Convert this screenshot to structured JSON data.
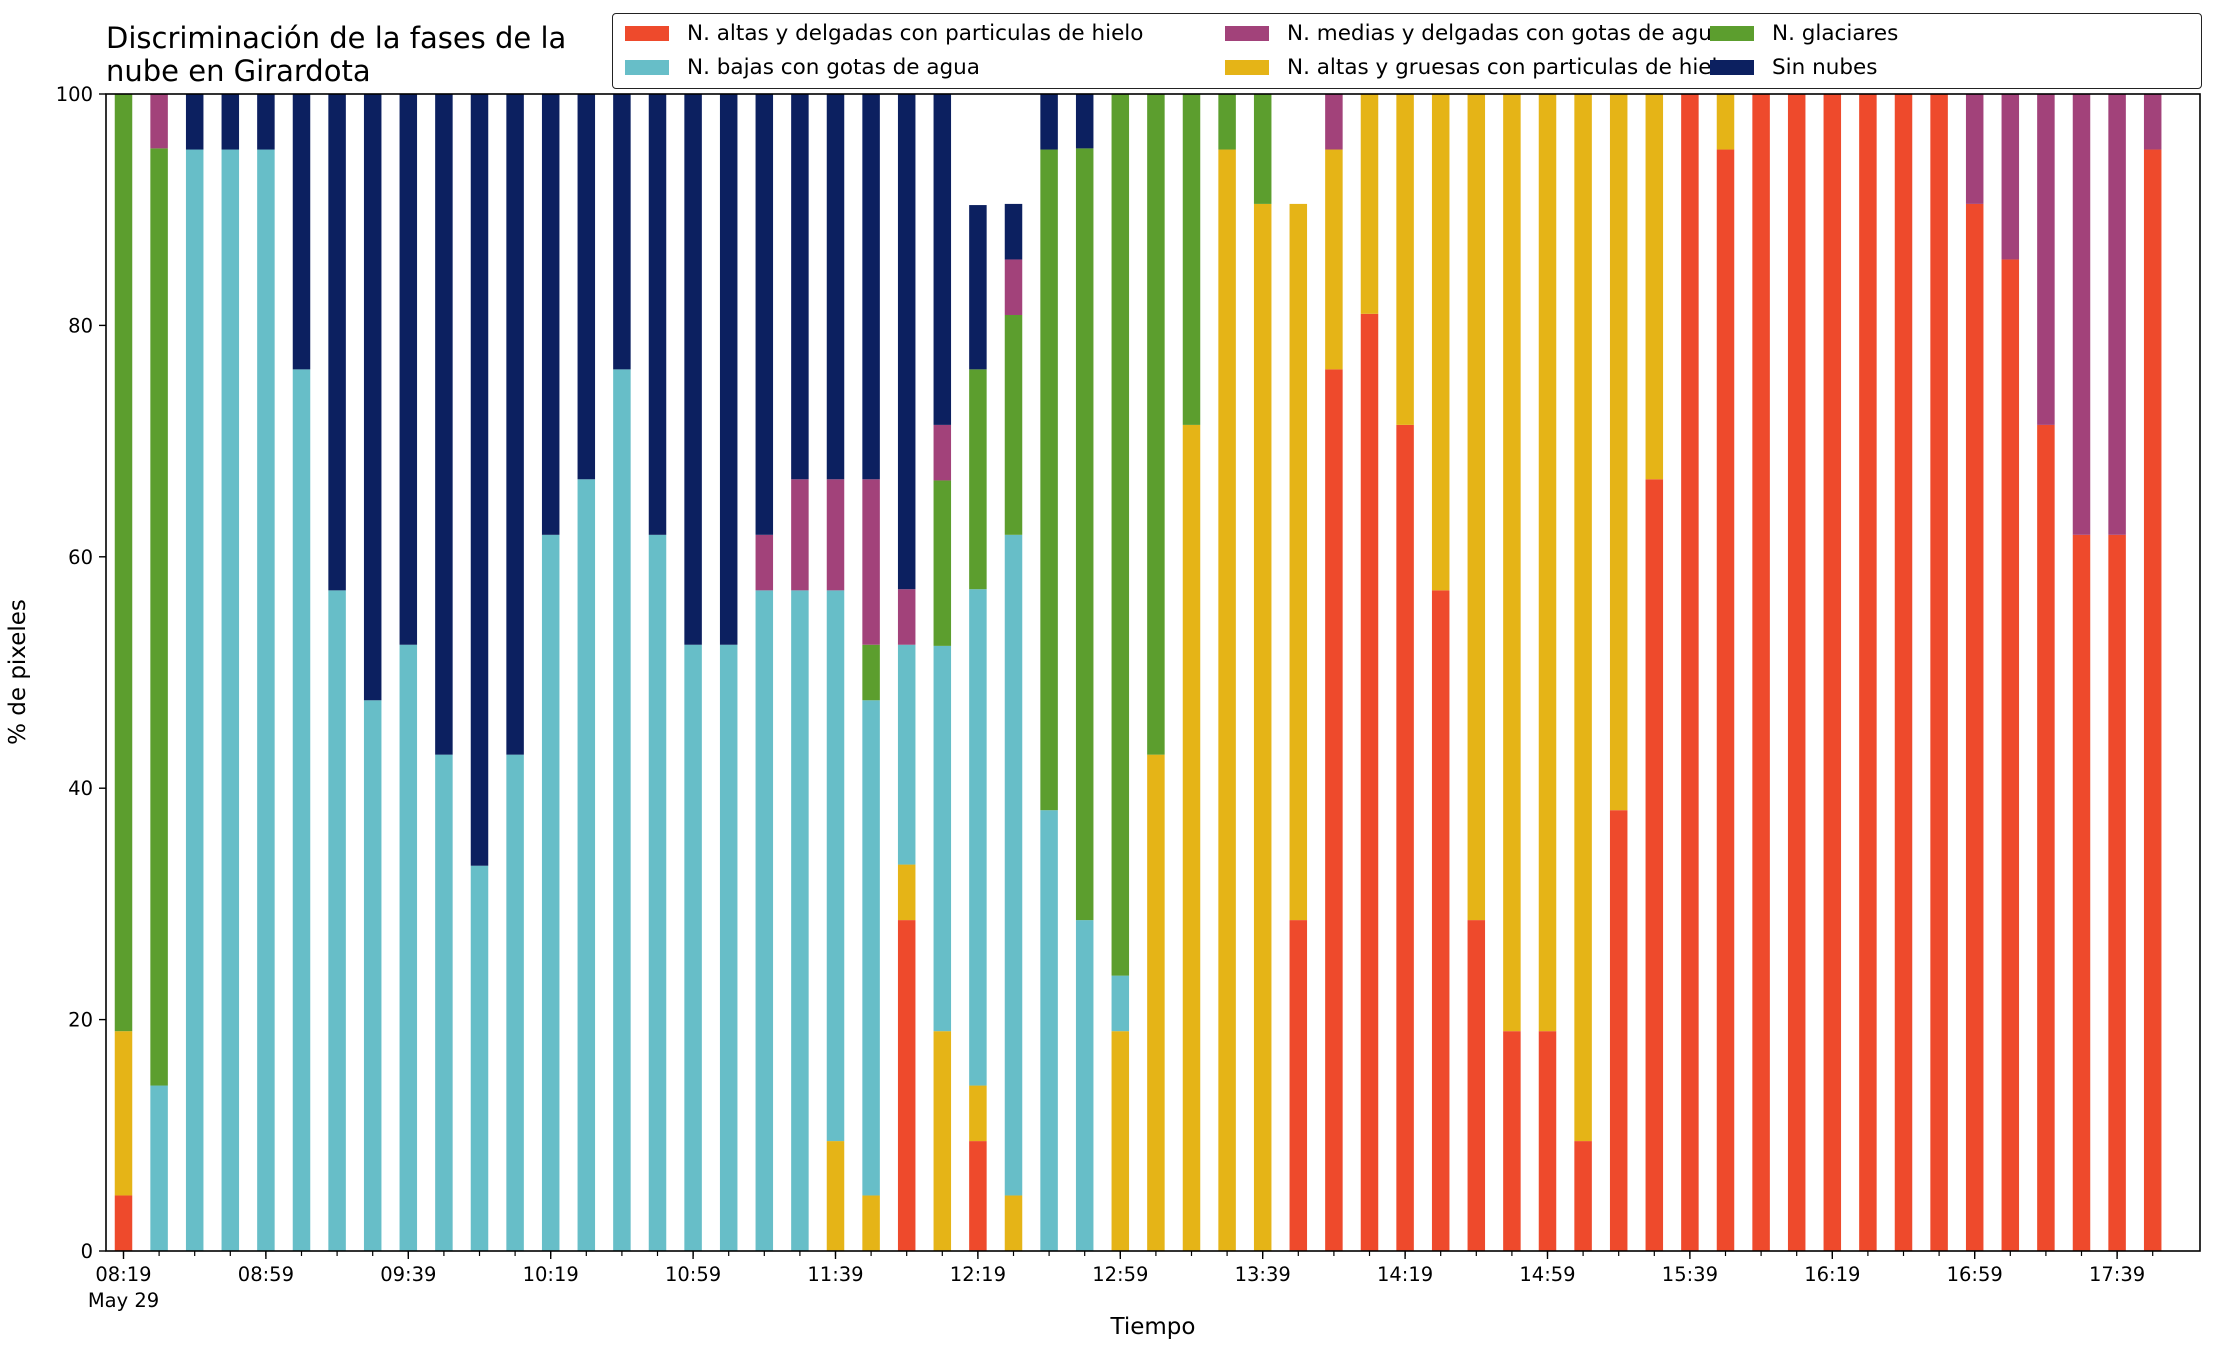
{
  "chart_data": {
    "type": "bar",
    "stacked": true,
    "title": "Discriminación de la fases de la\nnube en Girardota",
    "xlabel": "Tiempo",
    "ylabel": "% de pixeles",
    "ylim": [
      0,
      100
    ],
    "yticks": [
      0,
      20,
      40,
      60,
      80,
      100
    ],
    "grid": false,
    "legend_position": "top-right",
    "categories": [
      "08:19",
      "08:29",
      "08:39",
      "08:49",
      "08:59",
      "09:09",
      "09:19",
      "09:29",
      "09:39",
      "09:49",
      "09:59",
      "10:09",
      "10:19",
      "10:29",
      "10:39",
      "10:49",
      "10:59",
      "11:09",
      "11:19",
      "11:29",
      "11:39",
      "11:49",
      "11:59",
      "12:09",
      "12:19",
      "12:29",
      "12:39",
      "12:49",
      "12:59",
      "13:09",
      "13:19",
      "13:29",
      "13:39",
      "13:49",
      "13:59",
      "14:09",
      "14:19",
      "14:29",
      "14:39",
      "14:49",
      "14:59",
      "15:09",
      "15:19",
      "15:29",
      "15:39",
      "15:49",
      "15:59",
      "16:09",
      "16:19",
      "16:29",
      "16:39",
      "16:49",
      "16:59",
      "17:09",
      "17:19",
      "17:29",
      "17:39",
      "17:49"
    ],
    "x_tick_labels": [
      "08:19",
      "08:59",
      "09:39",
      "10:19",
      "10:59",
      "11:39",
      "12:19",
      "12:59",
      "13:39",
      "14:19",
      "14:59",
      "15:39",
      "16:19",
      "16:59",
      "17:39"
    ],
    "x_tick_sublabel": "May 29",
    "legend_order": [
      0,
      2,
      4,
      1,
      3,
      5
    ],
    "series": [
      {
        "name": "N. altas y delgadas con particulas de hielo",
        "color": "#ee4a2c",
        "values": [
          4.8,
          0,
          0,
          0,
          0,
          0,
          0,
          0,
          0,
          0,
          0,
          0,
          0,
          0,
          0,
          0,
          0,
          0,
          0,
          0,
          0,
          0,
          28.6,
          0,
          9.5,
          0,
          0,
          0,
          0,
          0,
          0,
          0,
          0,
          28.6,
          76.2,
          81,
          71.4,
          57.1,
          28.6,
          19,
          19,
          9.5,
          38.1,
          66.7,
          100,
          95.2,
          100,
          100,
          100,
          100,
          100,
          100,
          90.5,
          85.7,
          71.4,
          61.9,
          61.9,
          95.2
        ]
      },
      {
        "name": "N. altas y gruesas con particulas de hielo",
        "color": "#e5b417",
        "values": [
          14.2,
          0,
          0,
          0,
          0,
          0,
          0,
          0,
          0,
          0,
          0,
          0,
          0,
          0,
          0,
          0,
          0,
          0,
          0,
          0,
          9.5,
          4.8,
          4.8,
          19,
          4.8,
          4.8,
          0,
          0,
          19,
          42.9,
          71.4,
          95.2,
          90.5,
          61.9,
          19,
          19,
          28.6,
          42.9,
          71.4,
          81,
          81,
          90.5,
          61.9,
          33.3,
          0,
          4.8,
          0,
          0,
          0,
          0,
          0,
          0,
          0,
          0,
          0,
          0,
          0,
          0
        ]
      },
      {
        "name": "N. bajas con gotas de agua",
        "color": "#67bec8",
        "values": [
          0,
          14.3,
          95.2,
          95.2,
          95.2,
          76.2,
          57.1,
          47.6,
          52.4,
          42.9,
          33.3,
          42.9,
          61.9,
          66.7,
          76.2,
          61.9,
          52.4,
          52.4,
          57.1,
          57.1,
          47.6,
          42.8,
          19,
          33.3,
          42.9,
          57.1,
          38.1,
          28.6,
          4.8,
          0,
          0,
          0,
          0,
          0,
          0,
          0,
          0,
          0,
          0,
          0,
          0,
          0,
          0,
          0,
          0,
          0,
          0,
          0,
          0,
          0,
          0,
          0,
          0,
          0,
          0,
          0,
          0,
          0
        ]
      },
      {
        "name": "N. glaciares",
        "color": "#5c9e2e",
        "values": [
          81,
          81,
          0,
          0,
          0,
          0,
          0,
          0,
          0,
          0,
          0,
          0,
          0,
          0,
          0,
          0,
          0,
          0,
          0,
          0,
          0,
          4.8,
          0,
          14.3,
          19,
          19,
          57.1,
          66.7,
          76.2,
          57.1,
          28.6,
          4.8,
          9.5,
          0,
          0,
          0,
          0,
          0,
          0,
          0,
          0,
          0,
          0,
          0,
          0,
          0,
          0,
          0,
          0,
          0,
          0,
          0,
          0,
          0,
          0,
          0,
          0,
          0
        ]
      },
      {
        "name": "N. medias y delgadas con gotas de agua",
        "color": "#a2427a",
        "values": [
          0,
          4.7,
          0,
          0,
          0,
          0,
          0,
          0,
          0,
          0,
          0,
          0,
          0,
          0,
          0,
          0,
          0,
          0,
          4.8,
          9.6,
          9.6,
          14.3,
          4.8,
          4.8,
          0,
          4.8,
          0,
          0,
          0,
          0,
          0,
          0,
          0,
          0,
          4.8,
          0,
          0,
          0,
          0,
          0,
          0,
          0,
          0,
          0,
          0,
          0,
          0,
          0,
          0,
          0,
          0,
          0,
          9.5,
          14.3,
          28.6,
          38.1,
          38.1,
          4.8
        ]
      },
      {
        "name": "Sin nubes",
        "color": "#0c2060",
        "values": [
          0,
          0,
          4.8,
          4.8,
          4.8,
          23.8,
          42.9,
          52.4,
          47.6,
          57.1,
          66.7,
          57.1,
          38.1,
          33.3,
          23.8,
          38.1,
          47.6,
          47.6,
          38.1,
          33.3,
          33.3,
          33.3,
          42.8,
          28.6,
          14.2,
          4.8,
          4.8,
          4.7,
          0,
          0,
          0,
          0,
          0,
          0,
          0,
          0,
          0,
          0,
          0,
          0,
          0,
          0,
          0,
          0,
          0,
          0,
          0,
          0,
          0,
          0,
          0,
          0,
          0,
          0,
          0,
          0,
          0,
          0
        ]
      }
    ]
  }
}
